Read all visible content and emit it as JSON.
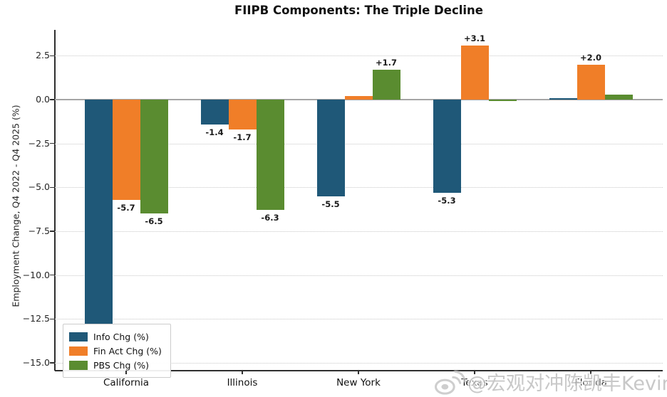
{
  "title": "FIIPB Components: The Triple Decline",
  "watermark": {
    "icon": "weibo-eye-icon",
    "text": "@宏观对冲陈凯丰Kevin"
  },
  "chart_data": {
    "type": "bar",
    "title": "FIIPB Components: The Triple Decline",
    "xlabel": "",
    "ylabel": "Employment Change, Q4 2022 - Q4 2025 (%)",
    "categories": [
      "California",
      "Illinois",
      "New York",
      "Texas",
      "Florida"
    ],
    "series": [
      {
        "name": "Info Chg (%)",
        "color": "#1f5878",
        "values": [
          -12.8,
          -1.4,
          -5.5,
          -5.3,
          0.1
        ],
        "labels": [
          "",
          "-1.4",
          "-5.5",
          "-5.3",
          ""
        ]
      },
      {
        "name": "Fin Act Chg (%)",
        "color": "#f07e28",
        "values": [
          -5.7,
          -1.7,
          0.2,
          3.1,
          2.0
        ],
        "labels": [
          "-5.7",
          "-1.7",
          "",
          "+3.1",
          "+2.0"
        ]
      },
      {
        "name": "PBS Chg (%)",
        "color": "#5a8c30",
        "values": [
          -6.5,
          -6.3,
          1.7,
          -0.1,
          0.3
        ],
        "labels": [
          "-6.5",
          "-6.3",
          "+1.7",
          "",
          ""
        ]
      }
    ],
    "ytick_labels": [
      "2.5",
      "0.0",
      "−2.5",
      "−5.0",
      "−7.5",
      "−10.0",
      "−12.5",
      "−15.0"
    ],
    "ytick_values": [
      2.5,
      0,
      -2.5,
      -5,
      -7.5,
      -10,
      -12.5,
      -15
    ],
    "ylim": [
      -15.5,
      4.0
    ],
    "grid": "horizontal-dotted",
    "legend_position": "lower-left"
  }
}
